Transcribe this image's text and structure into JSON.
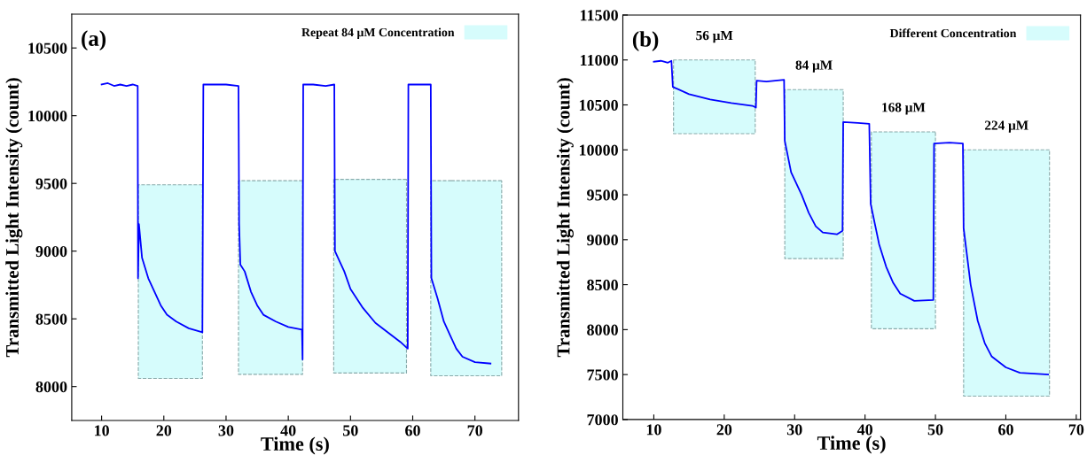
{
  "chart_data": [
    {
      "type": "line",
      "xlabel": "Time (s)",
      "ylabel": "Transmitted Light Intensity (count)",
      "annotations": [
        "(a)"
      ],
      "legend": "top right",
      "grid": false,
      "xlim": [
        5.2,
        77
      ],
      "ylim": [
        7750,
        10750
      ],
      "xticks": [
        10,
        20,
        30,
        40,
        50,
        60,
        70
      ],
      "yticks": [
        8000,
        8500,
        9000,
        9500,
        10000,
        10500
      ],
      "series": [
        {
          "type": "area",
          "name": "Repeat 84 μM Concentration",
          "color": "#d6fcfc",
          "x": [
            15.9,
            26.2,
            29,
            32.0,
            42.3,
            45,
            47.3,
            59.0,
            61,
            62.9,
            74.3
          ],
          "values": [
            null,
            null,
            null,
            null,
            null,
            null,
            null,
            null,
            null,
            null,
            null
          ],
          "lower": [
            8060,
            8060,
            null,
            8090,
            8090,
            null,
            8100,
            8100,
            null,
            8080,
            8080
          ],
          "upper": [
            9490,
            9490,
            null,
            9520,
            9520,
            null,
            9530,
            9530,
            null,
            9520,
            9520
          ]
        },
        {
          "color": "#0000ff",
          "x": [
            10,
            11,
            12,
            13,
            14,
            15,
            15.8,
            15.85,
            16.0,
            16.5,
            17.5,
            18.5,
            19.5,
            20.5,
            22,
            24,
            26.2,
            26.35,
            28,
            30,
            32.0,
            32.1,
            32.3,
            33,
            34,
            35,
            36,
            38,
            40,
            42.2,
            42.3,
            42.4,
            44,
            46,
            47.4,
            47.5,
            48,
            49,
            50,
            52,
            54,
            56,
            58,
            59.2,
            59.3,
            61,
            62.9,
            63.0,
            64,
            65,
            66,
            67,
            68,
            70,
            72.5
          ],
          "values": [
            10230,
            10240,
            10220,
            10230,
            10220,
            10230,
            10220,
            8800,
            9200,
            8950,
            8800,
            8700,
            8600,
            8530,
            8480,
            8430,
            8400,
            10230,
            10230,
            10230,
            10220,
            9200,
            8900,
            8850,
            8700,
            8600,
            8530,
            8480,
            8440,
            8420,
            8200,
            10230,
            10230,
            10220,
            10230,
            9000,
            8950,
            8850,
            8720,
            8580,
            8470,
            8400,
            8330,
            8280,
            10230,
            10230,
            10230,
            8800,
            8650,
            8480,
            8380,
            8280,
            8220,
            8180,
            8170
          ]
        }
      ]
    },
    {
      "type": "line",
      "xlabel": "Time (s)",
      "ylabel": "Transmitted Light Intensity (count)",
      "legend": "top right",
      "grid": false,
      "annotations": [
        "(b)",
        "56 μM",
        "84 μM",
        "168 μM",
        "224 μM"
      ],
      "xlim": [
        5.6,
        70.6
      ],
      "ylim": [
        7000,
        11500
      ],
      "xticks": [
        10,
        20,
        30,
        40,
        50,
        60,
        70
      ],
      "yticks": [
        7000,
        7500,
        8000,
        8500,
        9000,
        9500,
        10000,
        10500,
        11000,
        11500
      ],
      "series": [
        {
          "type": "area",
          "name": "Different Concentration",
          "color": "#d6fcfc",
          "x": [
            12.8,
            24.4,
            26,
            28.6,
            36.9,
            38,
            40.9,
            50.0,
            52,
            54.0,
            66.2
          ],
          "values": [
            null,
            null,
            null,
            null,
            null,
            null,
            null,
            null,
            null,
            null,
            null
          ],
          "lower": [
            10180,
            10180,
            null,
            8790,
            8790,
            null,
            8010,
            8010,
            null,
            7260,
            7260
          ],
          "upper": [
            11000,
            11000,
            null,
            10670,
            10670,
            null,
            10200,
            10200,
            null,
            10000,
            10000
          ]
        },
        {
          "color": "#0000ff",
          "x": [
            10,
            11,
            12,
            12.5,
            12.7,
            15,
            18,
            21,
            24,
            24.5,
            24.6,
            26,
            28.5,
            28.6,
            29.5,
            31,
            32,
            33,
            34,
            36,
            36.8,
            36.9,
            39,
            40.6,
            40.8,
            42,
            43,
            44,
            45,
            47,
            49.7,
            49.8,
            52,
            53.9,
            54.0,
            55,
            56,
            57,
            58,
            60,
            62,
            66
          ],
          "values": [
            10980,
            10990,
            10970,
            10990,
            10700,
            10620,
            10560,
            10520,
            10490,
            10470,
            10770,
            10760,
            10780,
            10100,
            9750,
            9500,
            9300,
            9150,
            9080,
            9060,
            9100,
            10310,
            10300,
            10290,
            9400,
            8950,
            8700,
            8520,
            8400,
            8320,
            8330,
            10070,
            10080,
            10070,
            9130,
            8500,
            8100,
            7850,
            7700,
            7580,
            7520,
            7500
          ]
        }
      ]
    }
  ]
}
